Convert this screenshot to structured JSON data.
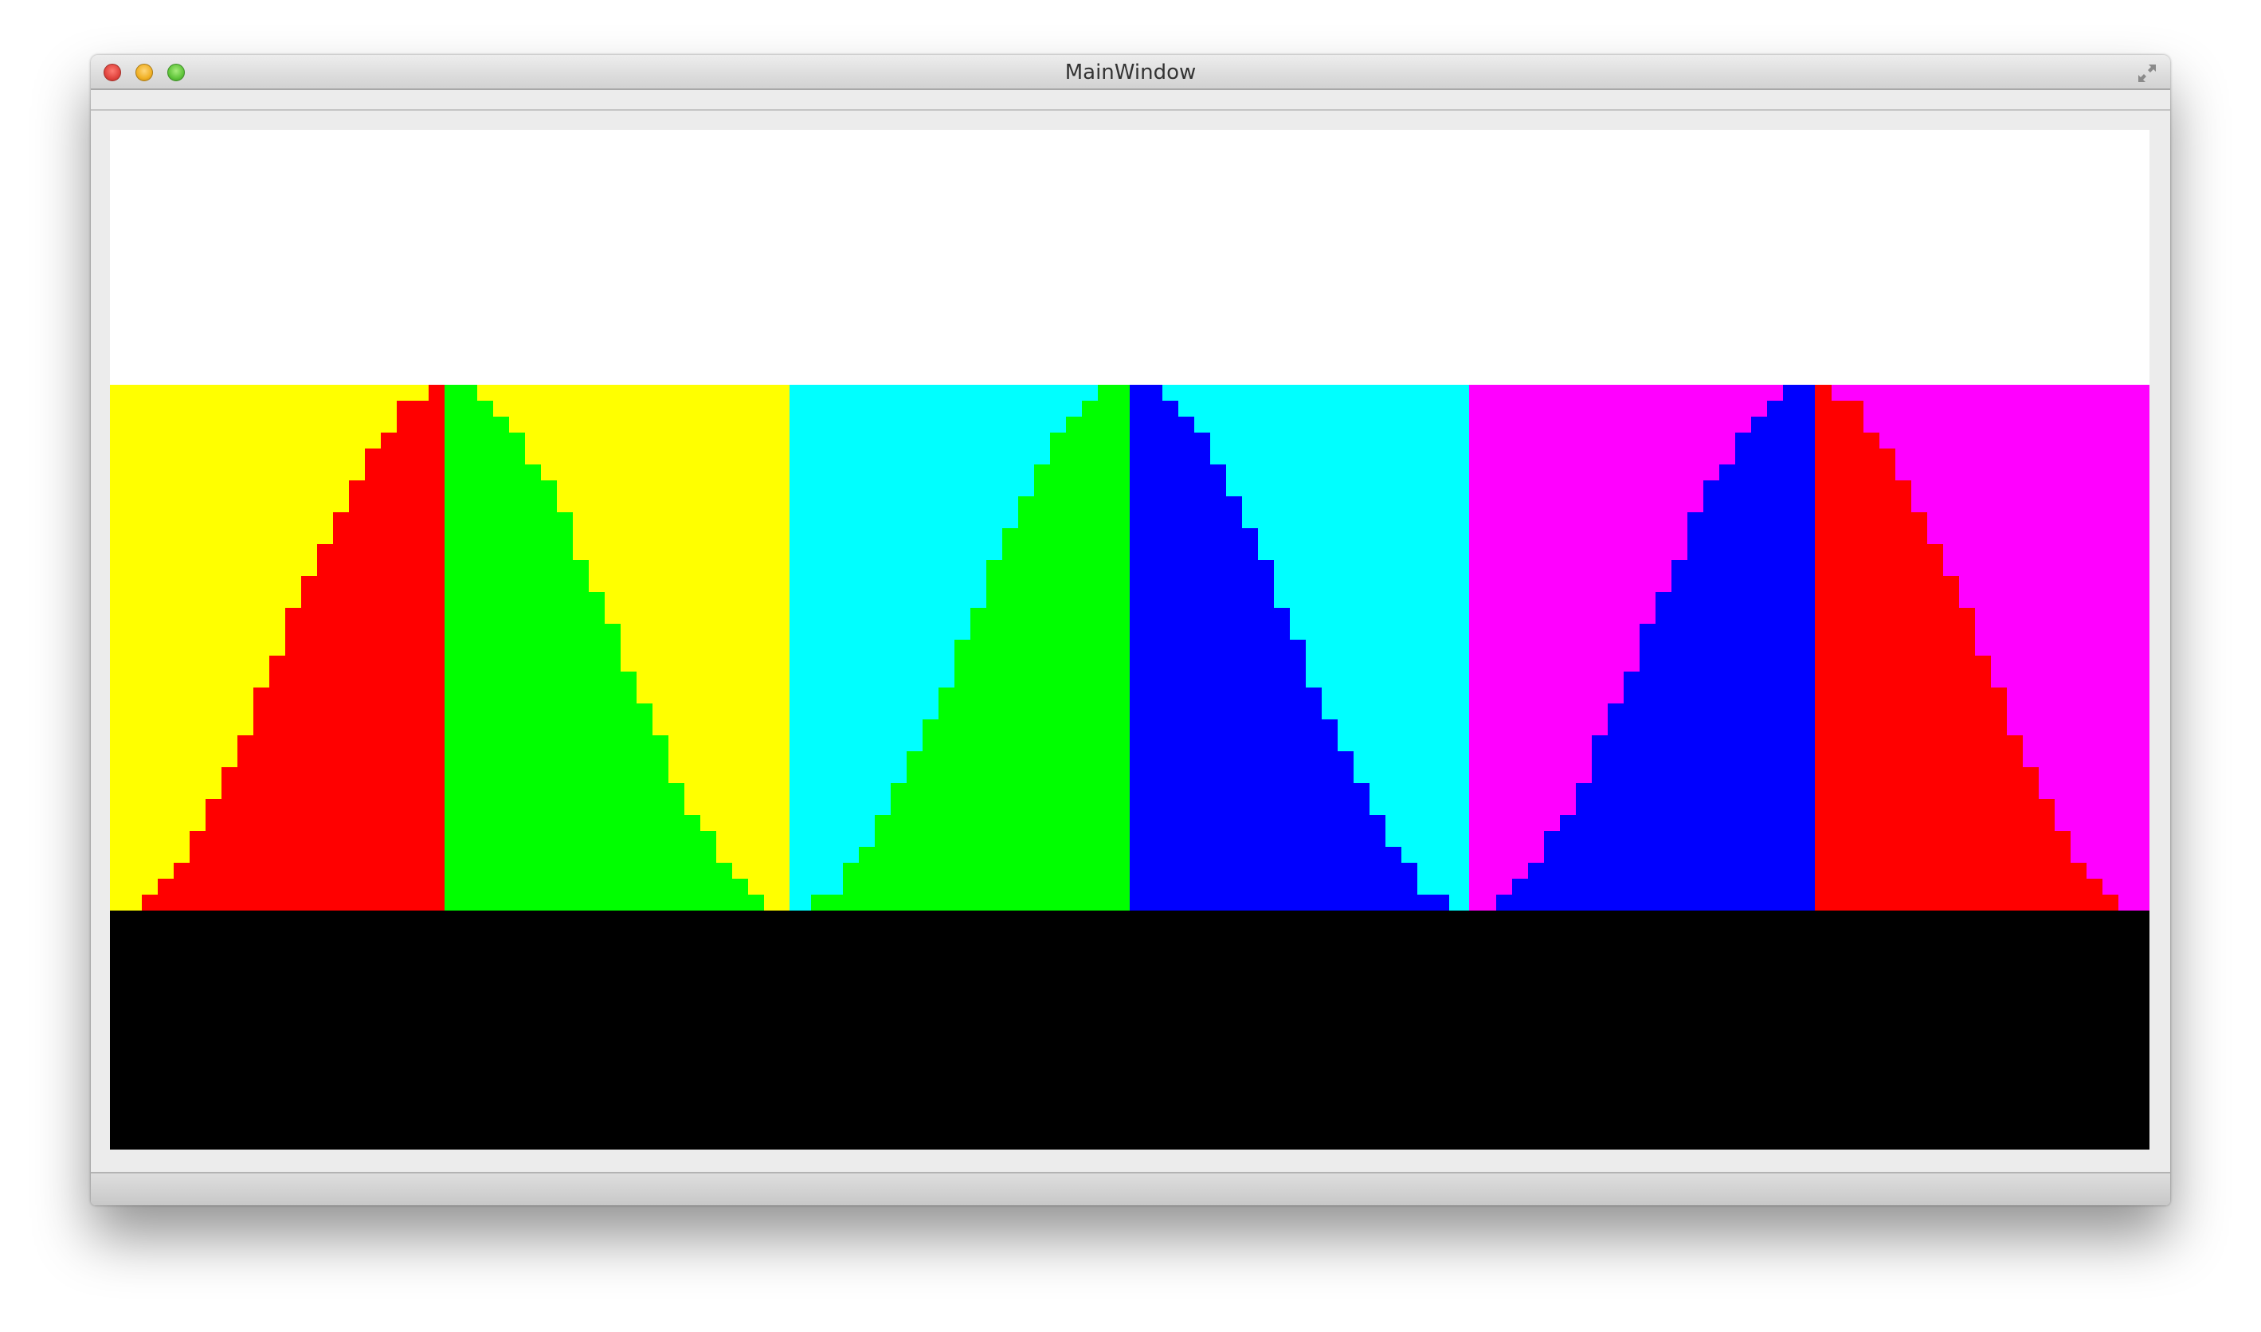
{
  "window": {
    "title": "MainWindow"
  },
  "icons": {
    "close": "close-button-icon",
    "minimize": "minimize-button-icon",
    "zoom": "zoom-button-icon",
    "fullscreen": "fullscreen-arrows-icon"
  },
  "colors": {
    "top_band": "#ffffff",
    "red": "#ff0000",
    "yellow": "#ffff00",
    "green": "#00ff00",
    "cyan": "#00ffff",
    "blue": "#0000ff",
    "magenta": "#ff00ff",
    "bottom_band": "#000000"
  }
}
